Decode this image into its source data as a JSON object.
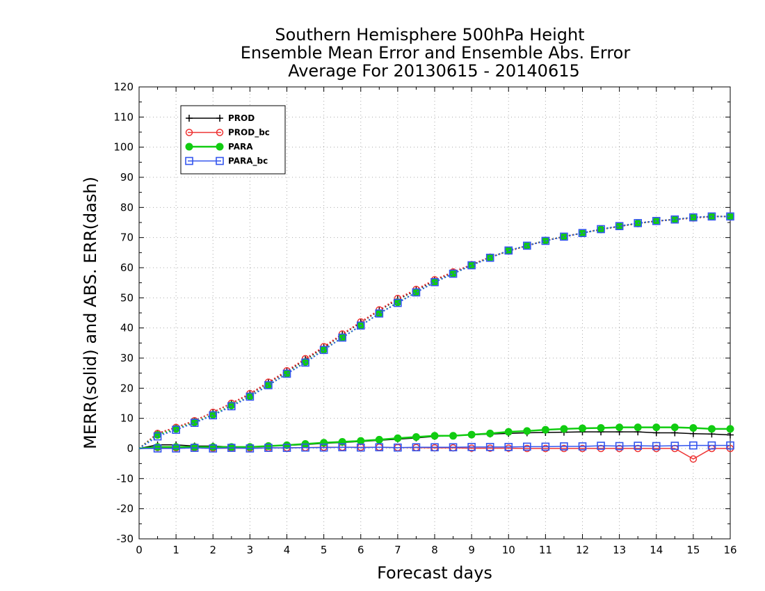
{
  "chart_data": {
    "type": "line",
    "title_lines": [
      "Southern Hemisphere 500hPa Height",
      "Ensemble Mean Error and Ensemble Abs. Error",
      "Average For 20130615 - 20140615"
    ],
    "xlabel": "Forecast days",
    "ylabel": "MERR(solid) and ABS. ERR(dash)",
    "xlim": [
      0,
      16
    ],
    "ylim": [
      -30,
      120
    ],
    "xticks": [
      "0",
      "1",
      "2",
      "3",
      "4",
      "5",
      "6",
      "7",
      "8",
      "9",
      "10",
      "11",
      "12",
      "13",
      "14",
      "15",
      "16"
    ],
    "yticks": [
      "-30",
      "-20",
      "-10",
      "0",
      "10",
      "20",
      "30",
      "40",
      "50",
      "60",
      "70",
      "80",
      "90",
      "100",
      "110",
      "120"
    ],
    "grid": true,
    "legend_position": "top-left",
    "x": [
      0,
      0.5,
      1,
      1.5,
      2,
      2.5,
      3,
      3.5,
      4,
      4.5,
      5,
      5.5,
      6,
      6.5,
      7,
      7.5,
      8,
      8.5,
      9,
      9.5,
      10,
      10.5,
      11,
      11.5,
      12,
      12.5,
      13,
      13.5,
      14,
      14.5,
      15,
      15.5,
      16
    ],
    "series": [
      {
        "name": "PROD",
        "color": "#000000",
        "marker": "plus",
        "kind": "merr",
        "values": [
          0,
          1.2,
          1.2,
          0.8,
          0.8,
          0.5,
          0.5,
          0.8,
          1.0,
          1.3,
          1.7,
          2.0,
          2.3,
          2.7,
          3.1,
          3.5,
          4.0,
          4.2,
          4.5,
          4.8,
          5.0,
          5.2,
          5.3,
          5.4,
          5.5,
          5.5,
          5.5,
          5.5,
          5.2,
          5.2,
          4.9,
          4.8,
          4.5
        ]
      },
      {
        "name": "PROD_bc",
        "color": "#ee3333",
        "marker": "circle",
        "kind": "merr",
        "values": [
          0,
          0.3,
          0.2,
          0.2,
          0.1,
          0.1,
          0.1,
          0.2,
          0.2,
          0.3,
          0.4,
          0.4,
          0.4,
          0.4,
          0.3,
          0.3,
          0.2,
          0.2,
          0.1,
          0.1,
          0.1,
          0,
          0,
          0,
          0,
          0,
          0,
          0,
          0,
          0,
          -3.5,
          0,
          0
        ]
      },
      {
        "name": "PARA",
        "color": "#11cc11",
        "marker": "filled-circle",
        "kind": "merr",
        "values": [
          0,
          0.5,
          0.5,
          0.5,
          0.5,
          0.5,
          0.5,
          0.8,
          1.1,
          1.5,
          1.9,
          2.2,
          2.5,
          2.9,
          3.4,
          3.8,
          4.2,
          4.2,
          4.6,
          5.0,
          5.5,
          5.8,
          6.2,
          6.5,
          6.7,
          6.8,
          7.0,
          7.0,
          7.0,
          7.0,
          6.8,
          6.5,
          6.5
        ]
      },
      {
        "name": "PARA_bc",
        "color": "#3355ee",
        "marker": "square",
        "kind": "merr",
        "values": [
          0,
          0,
          0,
          0.2,
          0,
          0.2,
          0,
          0.2,
          0.2,
          0.3,
          0.3,
          0.4,
          0.3,
          0.4,
          0.3,
          0.4,
          0.4,
          0.4,
          0.5,
          0.5,
          0.5,
          0.6,
          0.6,
          0.7,
          0.7,
          0.9,
          0.8,
          0.9,
          0.8,
          0.9,
          1.0,
          1.0,
          1.0
        ]
      },
      {
        "name": "PROD abs. err",
        "color": "#000000",
        "marker": "plus",
        "kind": "abserr",
        "values": [
          0,
          5.0,
          7.0,
          9.2,
          12.0,
          15.0,
          18.0,
          21.8,
          25.5,
          29.5,
          33.5,
          37.8,
          41.8,
          45.8,
          49.5,
          52.5,
          55.8,
          58.5,
          61.0,
          63.5,
          65.5,
          67.3,
          69.0,
          70.3,
          71.5,
          72.7,
          73.7,
          74.7,
          75.5,
          76.0,
          76.5,
          77.0,
          77.0
        ]
      },
      {
        "name": "PROD_bc abs. err",
        "color": "#ee3333",
        "marker": "circle",
        "kind": "abserr",
        "values": [
          0,
          5.0,
          7.0,
          9.2,
          12.0,
          15.0,
          18.2,
          22.0,
          25.8,
          29.8,
          33.8,
          38.0,
          42.0,
          46.0,
          49.8,
          52.8,
          56.0,
          58.6,
          61.0,
          63.5,
          65.5,
          67.3,
          69.0,
          70.3,
          71.5,
          72.7,
          73.7,
          74.7,
          75.5,
          76.0,
          76.5,
          77.0,
          77.0
        ]
      },
      {
        "name": "PARA abs. err",
        "color": "#11cc11",
        "marker": "filled-circle",
        "kind": "abserr",
        "values": [
          0,
          4.5,
          6.5,
          8.7,
          11.2,
          14.3,
          17.3,
          21.0,
          24.8,
          28.7,
          32.8,
          36.8,
          40.8,
          44.8,
          48.5,
          51.8,
          55.2,
          58.0,
          60.8,
          63.3,
          65.7,
          67.3,
          69.0,
          70.3,
          71.5,
          72.7,
          73.8,
          74.7,
          75.5,
          76.0,
          76.7,
          77.0,
          77.0
        ]
      },
      {
        "name": "PARA_bc abs. err",
        "color": "#3355ee",
        "marker": "square",
        "kind": "abserr",
        "values": [
          0,
          4.0,
          6.2,
          8.5,
          11.0,
          14.0,
          17.2,
          21.0,
          24.8,
          28.5,
          32.7,
          36.8,
          40.8,
          44.8,
          48.3,
          51.8,
          55.2,
          58.0,
          60.8,
          63.3,
          65.7,
          67.3,
          68.9,
          70.3,
          71.5,
          72.8,
          73.8,
          74.8,
          75.5,
          76.0,
          76.7,
          77.0,
          77.0
        ]
      }
    ],
    "legend": [
      {
        "name": "PROD",
        "color": "#000000",
        "marker": "plus"
      },
      {
        "name": "PROD_bc",
        "color": "#ee3333",
        "marker": "circle"
      },
      {
        "name": "PARA",
        "color": "#11cc11",
        "marker": "filled-circle"
      },
      {
        "name": "PARA_bc",
        "color": "#3355ee",
        "marker": "square"
      }
    ]
  }
}
